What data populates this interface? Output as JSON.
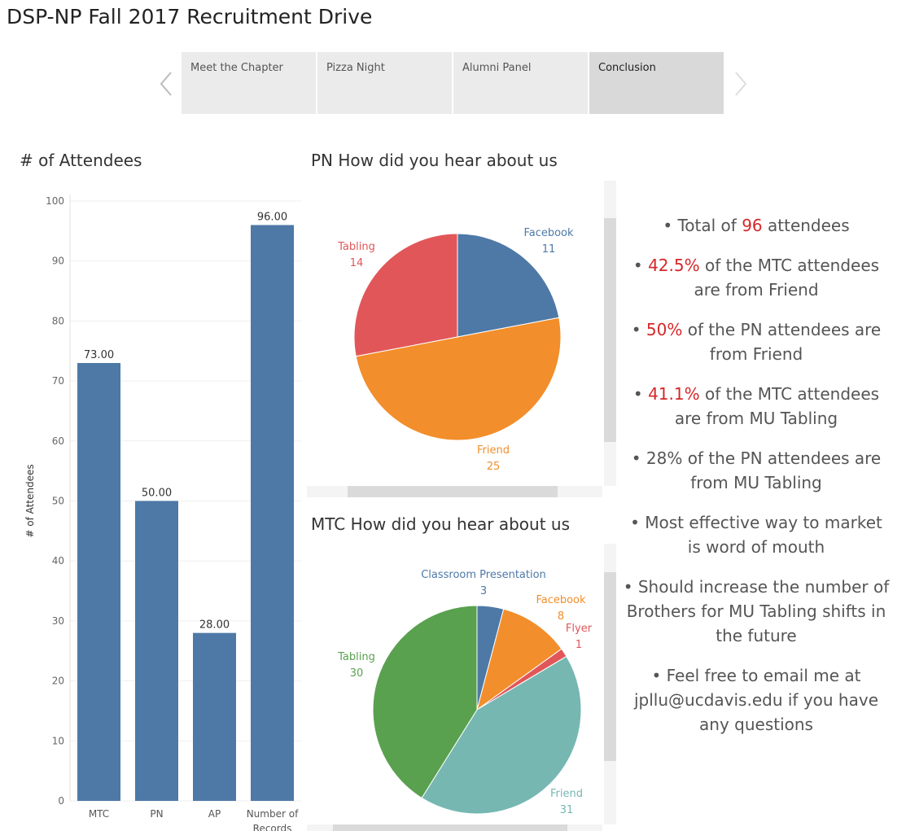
{
  "title": "DSP-NP Fall 2017 Recruitment Drive",
  "story": {
    "points": [
      "Meet the Chapter",
      "Pizza Night",
      "Alumni Panel",
      "Conclusion"
    ],
    "active_index": 3
  },
  "attendees": {
    "title": "# of Attendees",
    "chart_data": {
      "type": "bar",
      "categories": [
        "MTC",
        "PN",
        "AP",
        "Number of Records"
      ],
      "values": [
        73,
        50,
        28,
        96
      ],
      "value_labels": [
        "73.00",
        "50.00",
        "28.00",
        "96.00"
      ],
      "ylabel": "# of Attendees",
      "ylim": [
        0,
        100
      ],
      "yticks": [
        0,
        10,
        20,
        30,
        40,
        50,
        60,
        70,
        80,
        90,
        100
      ],
      "color": "#4e79a7"
    }
  },
  "pn_pie": {
    "title": "PN How did you hear about us",
    "chart_data": {
      "type": "pie",
      "slices": [
        {
          "label": "Facebook",
          "value": 11,
          "color": "#4e79a7"
        },
        {
          "label": "Friend",
          "value": 25,
          "color": "#f28e2b"
        },
        {
          "label": "Tabling",
          "value": 14,
          "color": "#e15759"
        }
      ]
    }
  },
  "mtc_pie": {
    "title": "MTC How did you hear about us",
    "chart_data": {
      "type": "pie",
      "slices": [
        {
          "label": "Classroom Presentation",
          "value": 3,
          "color": "#4e79a7"
        },
        {
          "label": "Facebook",
          "value": 8,
          "color": "#f28e2b"
        },
        {
          "label": "Flyer",
          "value": 1,
          "color": "#e15759"
        },
        {
          "label": "Friend",
          "value": 31,
          "color": "#76b7b2"
        },
        {
          "label": "Tabling",
          "value": 30,
          "color": "#59a14f"
        }
      ]
    }
  },
  "notes": [
    {
      "pre": "• Total of ",
      "hl": "96",
      "post": " attendees"
    },
    {
      "pre": "• ",
      "hl": "42.5%",
      "post": " of the MTC attendees are from Friend"
    },
    {
      "pre": "• ",
      "hl": "50%",
      "post": " of the PN attendees are from Friend"
    },
    {
      "pre": "• ",
      "hl": "41.1%",
      "post": " of the MTC attendees are from MU Tabling"
    },
    {
      "pre": "• 28% of the PN attendees are from MU Tabling",
      "hl": "",
      "post": ""
    },
    {
      "pre": "• Most effective way to market is word of mouth",
      "hl": "",
      "post": ""
    },
    {
      "pre": "• Should increase the number of Brothers for MU Tabling shifts in the future",
      "hl": "",
      "post": ""
    },
    {
      "pre": "• Feel free to email me at jpllu@ucdavis.edu if you have any questions",
      "hl": "",
      "post": ""
    }
  ],
  "colors": {
    "highlight": "#d62728",
    "text": "#555555"
  }
}
